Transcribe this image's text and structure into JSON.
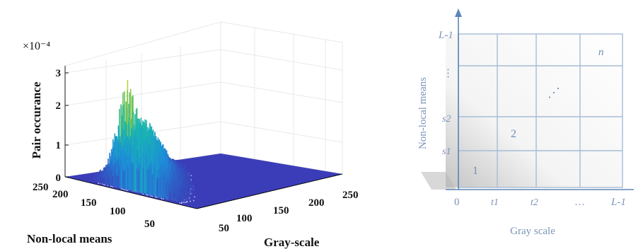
{
  "chart_data": [
    {
      "type": "surface",
      "title": "",
      "multiplier": "×10⁻⁴",
      "zlabel": "Pair occurance",
      "xlabel": "Non-local means",
      "ylabel": "Gray-scale",
      "zlim": [
        0,
        3.5
      ],
      "z_ticks": [
        "0",
        "1",
        "2",
        "3"
      ],
      "x_ticks": [
        "50",
        "100",
        "150",
        "200",
        "250"
      ],
      "y_ticks": [
        "50",
        "100",
        "150",
        "200",
        "250"
      ],
      "grid": true,
      "colormap": "parula",
      "peak": {
        "nonlocal_means": 185,
        "gray_scale": 40,
        "value": 3.5
      }
    },
    {
      "type": "diagram",
      "xlabel": "Gray scale",
      "ylabel": "Non-local means",
      "x_ticks": [
        "0",
        "t1",
        "t2",
        "…",
        "L-1"
      ],
      "y_ticks": [
        "s1",
        "s2",
        "⋮",
        "L-1"
      ],
      "cells": [
        "1",
        "2",
        "⋰",
        "n"
      ]
    }
  ]
}
